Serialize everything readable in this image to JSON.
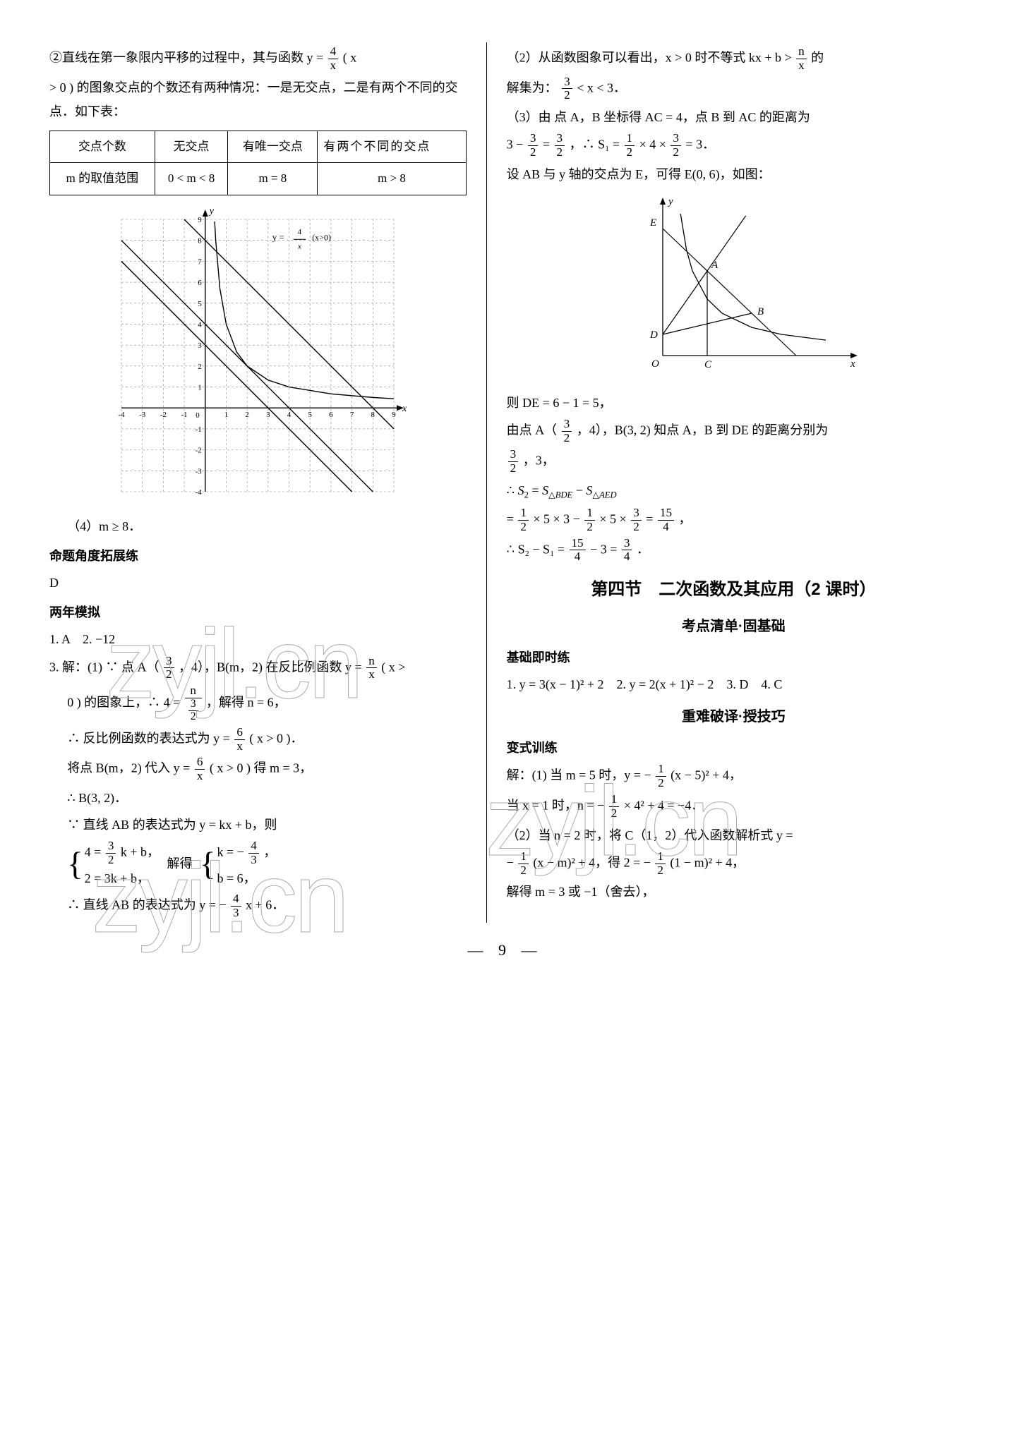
{
  "left": {
    "p1a": "②直线在第一象限内平移的过程中，其与函数 y =",
    "p1_frac_num": "4",
    "p1_frac_den": "x",
    "p1b": " ( x",
    "p2": "> 0 ) 的图象交点的个数还有两种情况：一是无交点，二是有两个不同的交点．如下表：",
    "table": {
      "r1c1": "交点个数",
      "r1c2": "无交点",
      "r1c3": "有唯一交点",
      "r1c4": "有两个不同的交点",
      "r2c1": "m 的取值范围",
      "r2c2": "0 < m < 8",
      "r2c3": "m = 8",
      "r2c4": "m > 8"
    },
    "chart1": {
      "y_label": "y",
      "x_label": "x",
      "curve_label_a": "y =",
      "curve_label_frac_num": "4",
      "curve_label_frac_den": "x",
      "curve_label_b": "(x>0)",
      "x_ticks": [
        "-4",
        "-3",
        "-2",
        "-1",
        "0",
        "1",
        "2",
        "3",
        "4",
        "5",
        "6",
        "7",
        "8",
        "9"
      ],
      "y_ticks_pos": [
        "1",
        "2",
        "3",
        "4",
        "5",
        "6",
        "7",
        "8",
        "9"
      ],
      "y_ticks_neg": [
        "-1",
        "-2",
        "-3",
        "-4"
      ],
      "grid_range_x": [
        -4,
        9
      ],
      "grid_range_y": [
        -4,
        9
      ],
      "line_slope": -1,
      "line_intercepts": [
        3,
        4,
        8
      ],
      "curve_points": [
        [
          0.45,
          8.9
        ],
        [
          0.5,
          8
        ],
        [
          0.7,
          5.7
        ],
        [
          1,
          4
        ],
        [
          1.5,
          2.67
        ],
        [
          2,
          2
        ],
        [
          3,
          1.33
        ],
        [
          4,
          1
        ],
        [
          6,
          0.67
        ],
        [
          8,
          0.5
        ],
        [
          9,
          0.44
        ]
      ],
      "line_width": 1.4,
      "tick_fontsize": 11,
      "grid_color": "#888",
      "axis_color": "#000"
    },
    "p_after_chart": "（4）m ≥ 8．",
    "h1": "命题角度拓展练",
    "p_D": "D",
    "h2": "两年模拟",
    "p_q12": "1. A　2. −12",
    "q3_l1a": "3. 解：(1) ∵ 点 A（",
    "q3_l1_frac_num": "3",
    "q3_l1_frac_den": "2",
    "q3_l1b": "，4），B(m，2) 在反比例函数 y =",
    "q3_l1_frac2_num": "n",
    "q3_l1_frac2_den": "x",
    "q3_l1c": " ( x >",
    "q3_l2a": "0 ) 的图象上，∴ 4 =",
    "q3_l2_frac_num": "n",
    "q3_l2_frac_den_num": "3",
    "q3_l2_frac_den_den": "2",
    "q3_l2b": "，解得 n = 6，",
    "q3_l3a": "∴ 反比例函数的表达式为 y =",
    "q3_l3_frac_num": "6",
    "q3_l3_frac_den": "x",
    "q3_l3b": " ( x > 0 )．",
    "q3_l4a": "将点 B(m，2) 代入 y =",
    "q3_l4_frac_num": "6",
    "q3_l4_frac_den": "x",
    "q3_l4b": " ( x > 0 ) 得 m = 3，",
    "q3_l5": "∴ B(3, 2)．",
    "q3_l6": "∵ 直线 AB 的表达式为 y = kx + b，则",
    "brace1_l1a": "4 =",
    "brace1_l1_frac_num": "3",
    "brace1_l1_frac_den": "2",
    "brace1_l1b": " k + b，",
    "brace1_l2": "2 = 3k + b，",
    "brace_mid": "解得",
    "brace2_l1a": "k = −",
    "brace2_l1_frac_num": "4",
    "brace2_l1_frac_den": "3",
    "brace2_l1b": "，",
    "brace2_l2": "b = 6，",
    "q3_l7a": "∴ 直线 AB 的表达式为 y = −",
    "q3_l7_frac_num": "4",
    "q3_l7_frac_den": "3",
    "q3_l7b": " x + 6．"
  },
  "right": {
    "p1a": "（2）从函数图象可以看出，x > 0 时不等式 kx + b >",
    "p1_frac_num": "n",
    "p1_frac_den": "x",
    "p1b": "的",
    "p2a": "解集为：",
    "p2_frac_num": "3",
    "p2_frac_den": "2",
    "p2b": " < x < 3．",
    "p3": "（3）由 点 A，B 坐标得 AC = 4，点 B 到 AC 的距离为",
    "p4a": "3 − ",
    "p4_f1n": "3",
    "p4_f1d": "2",
    "p4b": " = ",
    "p4_f2n": "3",
    "p4_f2d": "2",
    "p4c": "，∴ S₁ = ",
    "p4_f3n": "1",
    "p4_f3d": "2",
    "p4d": " × 4 × ",
    "p4_f4n": "3",
    "p4_f4d": "2",
    "p4e": " = 3．",
    "p5": "设 AB 与 y 轴的交点为 E，可得 E(0, 6)，如图：",
    "chart2": {
      "labels": {
        "y": "y",
        "x": "x",
        "E": "E",
        "A": "A",
        "B": "B",
        "D": "D",
        "O": "O",
        "C": "C"
      },
      "E": [
        0,
        6
      ],
      "A": [
        1.5,
        4
      ],
      "B": [
        3,
        2
      ],
      "D": [
        0,
        1
      ],
      "O": [
        0,
        0
      ],
      "C": [
        1.5,
        0
      ],
      "curve_points": [
        [
          0.6,
          6.7
        ],
        [
          0.8,
          5
        ],
        [
          1,
          4
        ],
        [
          1.5,
          2.67
        ],
        [
          2,
          2
        ],
        [
          3,
          1.33
        ],
        [
          4,
          1
        ],
        [
          5.5,
          0.73
        ]
      ],
      "line_AB_ext": [
        [
          0,
          6
        ],
        [
          4.5,
          0
        ]
      ],
      "line_DA_ext": [
        [
          0,
          1
        ],
        [
          2.8,
          6.6
        ]
      ],
      "line_DB": [
        [
          0,
          1
        ],
        [
          3,
          2
        ]
      ],
      "line_CA": [
        [
          1.5,
          0
        ],
        [
          1.5,
          4
        ]
      ],
      "axis_color": "#000"
    },
    "p6": "则 DE = 6 − 1 = 5，",
    "p7a": "由点 A（",
    "p7_f1n": "3",
    "p7_f1d": "2",
    "p7b": "，4），B(3, 2) 知点 A，B 到 DE 的距离分别为",
    "p8a_fn": "3",
    "p8a_fd": "2",
    "p8b": "，3，",
    "p9": "∴ S₂ = S△BDE − S△AED",
    "p10a": "= ",
    "p10_f1n": "1",
    "p10_f1d": "2",
    "p10b": " × 5 × 3 − ",
    "p10_f2n": "1",
    "p10_f2d": "2",
    "p10c": " × 5 × ",
    "p10_f3n": "3",
    "p10_f3d": "2",
    "p10d": " = ",
    "p10_f4n": "15",
    "p10_f4d": "4",
    "p10e": "，",
    "p11a": "∴ S₂ − S₁ = ",
    "p11_f1n": "15",
    "p11_f1d": "4",
    "p11b": " − 3 = ",
    "p11_f2n": "3",
    "p11_f2d": "4",
    "p11c": "．",
    "h_section": "第四节　二次函数及其应用（2 课时）",
    "h_sub1": "考点清单·固基础",
    "h_small1": "基础即时练",
    "p_basic": "1. y = 3(x − 1)² + 2　2. y = 2(x + 1)² − 2　3. D　4. C",
    "h_sub2": "重难破译·授技巧",
    "h_small2": "变式训练",
    "v1a": "解：(1) 当 m = 5 时，y = −",
    "v1_fn": "1",
    "v1_fd": "2",
    "v1b": "(x − 5)² + 4，",
    "v2a": "当 x = 1 时，n = −",
    "v2_fn": "1",
    "v2_fd": "2",
    "v2b": " × 4² + 4 = −4．",
    "v3": "（2）当 n = 2 时，将 C（1，2）代入函数解析式 y =",
    "v4a": "−",
    "v4_f1n": "1",
    "v4_f1d": "2",
    "v4b": "(x − m)² + 4，得 2 = −",
    "v4_f2n": "1",
    "v4_f2d": "2",
    "v4c": "(1 − m)² + 4，",
    "v5": "解得 m = 3 或 −1（舍去），"
  },
  "page_number": "— 9 —",
  "watermark_text": "zyjl.cn"
}
